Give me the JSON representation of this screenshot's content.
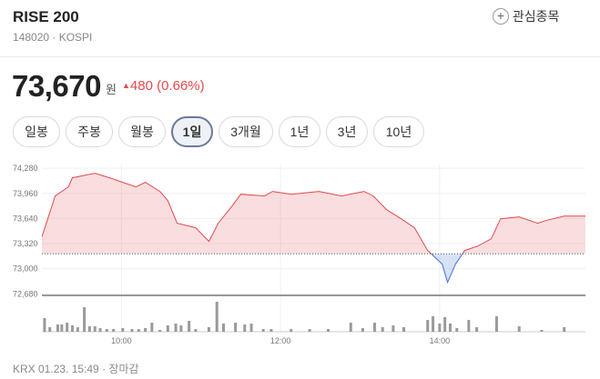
{
  "header": {
    "title": "RISE 200",
    "code": "148020 · KOSPI",
    "watch": "관심종목"
  },
  "quote": {
    "price": "73,670",
    "unit": "원",
    "change": "480 (0.66%)"
  },
  "tabs": [
    "일봉",
    "주봉",
    "월봉",
    "1일",
    "3개월",
    "1년",
    "3년",
    "10년"
  ],
  "selected_tab": 3,
  "footer": "KRX 01.23. 15:49 · 장마감",
  "chart_data": {
    "type": "line",
    "x": [
      540,
      550,
      560,
      563,
      580,
      591,
      601,
      611,
      618,
      629,
      635,
      642,
      656,
      666,
      673,
      684,
      690,
      708,
      714,
      728,
      749,
      766,
      783,
      790,
      800,
      811,
      821,
      831,
      842,
      846,
      852,
      859,
      869,
      879,
      886,
      900,
      914,
      920,
      934,
      950
    ],
    "values": [
      73406,
      73927,
      74043,
      74159,
      74217,
      74159,
      74101,
      74043,
      74101,
      73985,
      73869,
      73580,
      73522,
      73348,
      73580,
      73811,
      73950,
      73927,
      73985,
      73950,
      73985,
      73927,
      73985,
      73927,
      73753,
      73637,
      73522,
      73232,
      73058,
      72826,
      73058,
      73232,
      73290,
      73382,
      73637,
      73661,
      73580,
      73614,
      73670,
      73670
    ],
    "baseline": 73190,
    "up_color": "#e5484d",
    "down_color": "#3b6fd8",
    "xlim": [
      540,
      950
    ],
    "ylim": [
      72660,
      74340
    ],
    "xticks": [
      {
        "value": 600,
        "label": "10:00"
      },
      {
        "value": 720,
        "label": "12:00"
      },
      {
        "value": 840,
        "label": "14:00"
      }
    ],
    "yticks": [
      {
        "value": 74280,
        "label": "74,280"
      },
      {
        "value": 73960,
        "label": "73,960"
      },
      {
        "value": 73640,
        "label": "73,640"
      },
      {
        "value": 73320,
        "label": "73,320"
      },
      {
        "value": 73000,
        "label": "73,000"
      },
      {
        "value": 72680,
        "label": "72,680"
      }
    ],
    "volume": {
      "color": "#9a9a9a",
      "x": [
        542,
        546,
        552,
        555,
        559,
        563,
        567,
        572,
        576,
        580,
        584,
        589,
        594,
        601,
        608,
        613,
        618,
        623,
        629,
        635,
        641,
        645,
        651,
        656,
        666,
        672,
        677,
        686,
        693,
        698,
        707,
        713,
        728,
        742,
        756,
        773,
        782,
        791,
        797,
        805,
        813,
        831,
        835,
        840,
        844,
        848,
        853,
        862,
        868,
        883,
        900,
        917,
        934
      ],
      "values": [
        15,
        5,
        8,
        8,
        10,
        7,
        5,
        27,
        6,
        6,
        4,
        3,
        3,
        4,
        3,
        3,
        4,
        10,
        2,
        7,
        9,
        7,
        12,
        3,
        5,
        33,
        9,
        10,
        8,
        9,
        3,
        3,
        3,
        3,
        3,
        10,
        4,
        10,
        5,
        7,
        5,
        13,
        17,
        9,
        16,
        9,
        4,
        13,
        5,
        17,
        6,
        2,
        5
      ]
    }
  }
}
